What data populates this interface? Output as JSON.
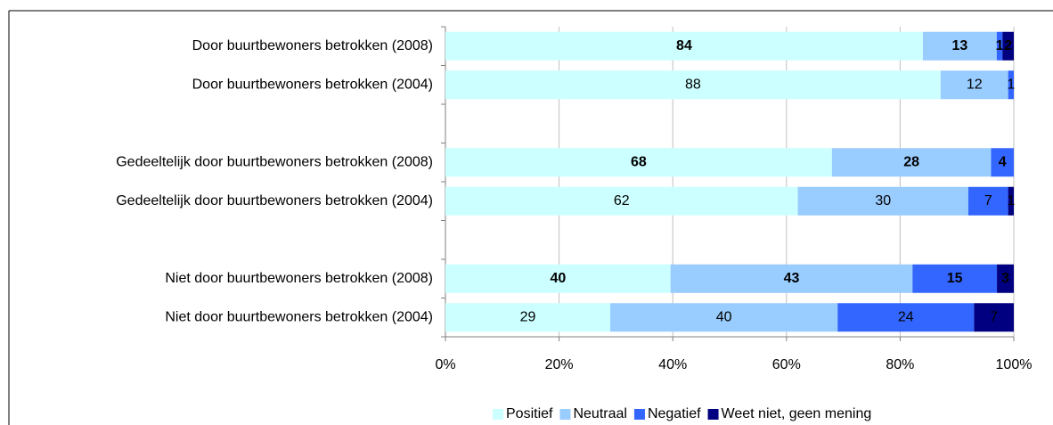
{
  "chart_data": {
    "type": "stacked-bar-horizontal",
    "stacking": "percent",
    "categories": [
      "Door buurtbewoners betrokken (2008)",
      "Door buurtbewoners betrokken (2004)",
      null,
      "Gedeeltelijk door buurtbewoners betrokken (2008)",
      "Gedeeltelijk door buurtbewoners betrokken (2004)",
      null,
      "Niet door buurtbewoners betrokken (2008)",
      "Niet door buurtbewoners betrokken (2004)"
    ],
    "series": [
      {
        "name": "Positief",
        "color": "#ccffff",
        "label_color": "#000000",
        "values": [
          84,
          88,
          null,
          68,
          62,
          null,
          40,
          29
        ]
      },
      {
        "name": "Neutraal",
        "color": "#99ccff",
        "label_color": "#000000",
        "values": [
          13,
          12,
          null,
          28,
          30,
          null,
          43,
          40
        ]
      },
      {
        "name": "Negatief",
        "color": "#3366ff",
        "label_color": "#ffffff",
        "values": [
          1,
          1,
          null,
          4,
          7,
          null,
          15,
          24
        ]
      },
      {
        "name": "Weet niet, geen mening",
        "color": "#000080",
        "label_color": "#ffffff",
        "values": [
          2,
          null,
          null,
          null,
          1,
          null,
          3,
          7
        ]
      }
    ],
    "xlim": [
      0,
      100
    ],
    "xticks": [
      {
        "value": 0,
        "label": "0%"
      },
      {
        "value": 20,
        "label": "20%"
      },
      {
        "value": 40,
        "label": "40%"
      },
      {
        "value": 60,
        "label": "60%"
      },
      {
        "value": 80,
        "label": "80%"
      },
      {
        "value": 100,
        "label": "100%"
      }
    ],
    "grid": true,
    "legend": "bottom"
  }
}
